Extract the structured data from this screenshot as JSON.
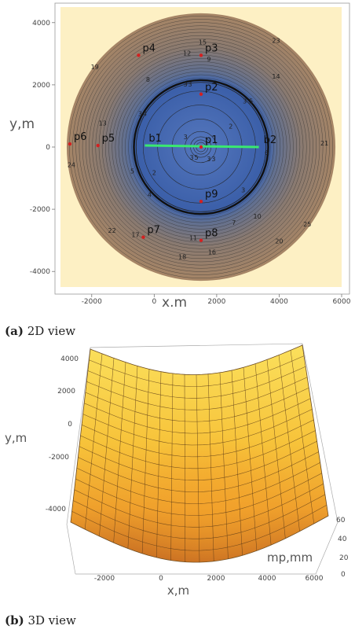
{
  "figure": {
    "caption_a_label": "(a)",
    "caption_a_text": "2D view",
    "caption_b_label": "(b)",
    "caption_b_text": "3D view"
  },
  "chart_data": [
    {
      "type": "contour",
      "xlabel": "x,m",
      "ylabel": "y,m",
      "xlim": [
        -3000,
        6000
      ],
      "ylim": [
        -4500,
        4500
      ],
      "x_ticks": [
        -2000,
        0,
        2000,
        4000,
        6000
      ],
      "y_ticks": [
        4000,
        2000,
        0,
        -2000,
        -4000
      ],
      "x_tick_labels": [
        "-2000",
        "0",
        "2000",
        "4000",
        "6000"
      ],
      "y_tick_labels": [
        "4000",
        "2000",
        "0",
        "-2000",
        "-4000"
      ],
      "center": [
        1500,
        0
      ],
      "outer_radius_m": 4300,
      "inner_boundary_radius_m": 2150,
      "contour_interval": 1,
      "colors": {
        "background": "#fdf0c4",
        "inner": "#3f64ad",
        "outer": "#9e8066",
        "segment": "#3ae870",
        "point": "#d42020"
      },
      "points": [
        {
          "label": "p1",
          "x": 1500,
          "y": 0
        },
        {
          "label": "p2",
          "x": 1500,
          "y": 1700
        },
        {
          "label": "p3",
          "x": 1500,
          "y": 2950
        },
        {
          "label": "p4",
          "x": -500,
          "y": 2950
        },
        {
          "label": "p5",
          "x": -1800,
          "y": 50
        },
        {
          "label": "p6",
          "x": -2700,
          "y": 100
        },
        {
          "label": "p7",
          "x": -350,
          "y": -2900
        },
        {
          "label": "p8",
          "x": 1500,
          "y": -3000
        },
        {
          "label": "p9",
          "x": 1500,
          "y": -1750
        },
        {
          "label": "b1",
          "x": -300,
          "y": 50
        },
        {
          "label": "b2",
          "x": 3350,
          "y": 0
        }
      ],
      "segment": {
        "from": "b1",
        "to": "b2"
      },
      "contour_labels": [
        {
          "text": "15",
          "x": 1550,
          "y": 3300
        },
        {
          "text": "12",
          "x": 1050,
          "y": 2950
        },
        {
          "text": "9",
          "x": 1750,
          "y": 2750
        },
        {
          "text": "23",
          "x": 3900,
          "y": 3350
        },
        {
          "text": "19",
          "x": -1900,
          "y": 2500
        },
        {
          "text": "14",
          "x": 3900,
          "y": 2200
        },
        {
          "text": "8",
          "x": -200,
          "y": 2100
        },
        {
          "text": "3",
          "x": 1000,
          "y": 1950
        },
        {
          "text": "3",
          "x": 1150,
          "y": 1950
        },
        {
          "text": "3",
          "x": 2900,
          "y": 1400
        },
        {
          "text": "5",
          "x": 3100,
          "y": 1400
        },
        {
          "text": "3",
          "x": -450,
          "y": 1000
        },
        {
          "text": "4",
          "x": -300,
          "y": 1000
        },
        {
          "text": "13",
          "x": -1650,
          "y": 700
        },
        {
          "text": "2",
          "x": 2450,
          "y": 600
        },
        {
          "text": "3",
          "x": 1000,
          "y": 250
        },
        {
          "text": "21",
          "x": 5450,
          "y": 50
        },
        {
          "text": "6",
          "x": 3600,
          "y": -250
        },
        {
          "text": "24",
          "x": -2650,
          "y": -650
        },
        {
          "text": "3",
          "x": 1200,
          "y": -400
        },
        {
          "text": "5",
          "x": 1350,
          "y": -400
        },
        {
          "text": "3",
          "x": 1750,
          "y": -450
        },
        {
          "text": "3",
          "x": 1900,
          "y": -450
        },
        {
          "text": "5",
          "x": -700,
          "y": -850
        },
        {
          "text": "2",
          "x": 0,
          "y": -900
        },
        {
          "text": "4",
          "x": -150,
          "y": -1600
        },
        {
          "text": "3",
          "x": 2850,
          "y": -1450
        },
        {
          "text": "10",
          "x": 3300,
          "y": -2300
        },
        {
          "text": "7",
          "x": 2550,
          "y": -2500
        },
        {
          "text": "25",
          "x": 4900,
          "y": -2550
        },
        {
          "text": "22",
          "x": -1350,
          "y": -2750
        },
        {
          "text": "17",
          "x": -600,
          "y": -2900
        },
        {
          "text": "11",
          "x": 1250,
          "y": -3000
        },
        {
          "text": "20",
          "x": 4000,
          "y": -3100
        },
        {
          "text": "16",
          "x": 1850,
          "y": -3450
        },
        {
          "text": "18",
          "x": 900,
          "y": -3600
        }
      ]
    },
    {
      "type": "surface",
      "xlabel": "x,m",
      "ylabel": "y,m",
      "zlabel": "mp,mm",
      "x_tick_labels": [
        "-2000",
        "0",
        "2000",
        "4000",
        "6000"
      ],
      "y_tick_labels": [
        "4000",
        "2000",
        "0",
        "-2000",
        "-4000"
      ],
      "z_tick_labels": [
        "60",
        "40",
        "20",
        "0"
      ],
      "zlim": [
        0,
        60
      ],
      "colors": {
        "light": "#fbe05a",
        "mid": "#f6b02c",
        "dark": "#c76a22"
      }
    }
  ]
}
